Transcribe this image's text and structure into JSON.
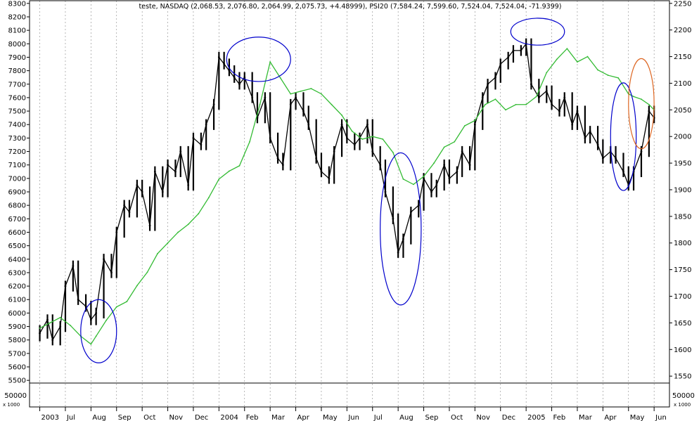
{
  "chart_data": {
    "type": "line",
    "title": "teste, NASDAQ (2,068.53, 2,076.80, 2,064.99, 2,075.73, +4.48999), PSI20 (7,584.24, 7,599.60, 7,524.04, 7,524.04, -71.9399)",
    "x_tick_labels": [
      "2003",
      "Jul",
      "Aug",
      "Sep",
      "Oct",
      "Nov",
      "Dec",
      "2004",
      "Feb",
      "Mar",
      "Apr",
      "May",
      "Jun",
      "Jul",
      "Aug",
      "Sep",
      "Oct",
      "Nov",
      "Dec",
      "2005",
      "Feb",
      "Mar",
      "Apr",
      "May",
      "Jun"
    ],
    "x_tick_months": [
      0,
      1,
      2,
      3,
      4,
      5,
      6,
      7,
      8,
      9,
      10,
      11,
      12,
      13,
      14,
      15,
      16,
      17,
      18,
      19,
      20,
      21,
      22,
      23,
      24
    ],
    "xlim": [
      -0.4,
      24.6
    ],
    "left_axis": {
      "ylim": [
        5480,
        8320
      ],
      "ticks": [
        5500,
        5600,
        5700,
        5800,
        5900,
        6000,
        6100,
        6200,
        6300,
        6400,
        6500,
        6600,
        6700,
        6800,
        6900,
        7000,
        7100,
        7200,
        7300,
        7400,
        7500,
        7600,
        7700,
        7800,
        7900,
        8000,
        8100,
        8200,
        8300
      ]
    },
    "right_axis": {
      "ylim": [
        1537,
        2255
      ],
      "ticks": [
        1550,
        1600,
        1650,
        1700,
        1750,
        1800,
        1850,
        1900,
        1950,
        2000,
        2050,
        2100,
        2150,
        2200,
        2250
      ]
    },
    "volume_panel": {
      "left_label": "50000",
      "right_label": "50000",
      "multiplier_label": "x 1000"
    },
    "series": [
      {
        "name": "PSI20",
        "axis": "left",
        "color": "#000000",
        "style": "bars",
        "x": [
          0,
          0.3,
          0.5,
          0.8,
          1.0,
          1.3,
          1.5,
          1.8,
          2.0,
          2.2,
          2.5,
          2.8,
          3.0,
          3.3,
          3.5,
          3.8,
          4.0,
          4.3,
          4.5,
          4.8,
          5.0,
          5.3,
          5.5,
          5.8,
          6.0,
          6.3,
          6.5,
          6.8,
          7.0,
          7.2,
          7.4,
          7.6,
          7.8,
          8.0,
          8.3,
          8.5,
          8.8,
          9.0,
          9.3,
          9.5,
          9.8,
          10.0,
          10.3,
          10.5,
          10.8,
          11.0,
          11.3,
          11.5,
          11.8,
          12.0,
          12.3,
          12.5,
          12.8,
          13.0,
          13.3,
          13.5,
          13.8,
          14.0,
          14.2,
          14.5,
          14.8,
          15.0,
          15.3,
          15.5,
          15.8,
          16.0,
          16.3,
          16.5,
          16.8,
          17.0,
          17.3,
          17.5,
          17.8,
          18.0,
          18.3,
          18.5,
          18.8,
          19.0,
          19.2,
          19.5,
          19.8,
          20.0,
          20.3,
          20.5,
          20.8,
          21.0,
          21.3,
          21.5,
          21.8,
          22.0,
          22.3,
          22.5,
          22.8,
          23.0,
          23.2,
          23.5,
          23.8,
          24.0
        ],
        "values": [
          5850,
          5950,
          5800,
          5900,
          6200,
          6350,
          6100,
          6050,
          5950,
          6000,
          6400,
          6300,
          6600,
          6800,
          6750,
          6950,
          6900,
          6650,
          7050,
          6900,
          7100,
          7050,
          7200,
          6950,
          7300,
          7250,
          7400,
          7550,
          7900,
          7850,
          7800,
          7750,
          7700,
          7750,
          7600,
          7450,
          7600,
          7300,
          7150,
          7100,
          7550,
          7600,
          7500,
          7400,
          7150,
          7050,
          7000,
          7200,
          7400,
          7300,
          7250,
          7300,
          7400,
          7200,
          7100,
          6900,
          6700,
          6450,
          6550,
          6750,
          6800,
          7000,
          6900,
          6950,
          7100,
          7000,
          7050,
          7200,
          7100,
          7400,
          7600,
          7700,
          7750,
          7850,
          7900,
          7950,
          7950,
          8000,
          7700,
          7600,
          7650,
          7550,
          7500,
          7600,
          7400,
          7500,
          7300,
          7350,
          7250,
          7150,
          7200,
          7150,
          7050,
          6950,
          7050,
          7200,
          7500,
          7450
        ]
      },
      {
        "name": "NASDAQ",
        "axis": "right",
        "color": "#33bb33",
        "style": "line",
        "x": [
          0,
          0.4,
          0.8,
          1.2,
          1.6,
          2.0,
          2.2,
          2.6,
          3.0,
          3.4,
          3.8,
          4.2,
          4.6,
          5.0,
          5.4,
          5.8,
          6.2,
          6.6,
          7.0,
          7.4,
          7.8,
          8.2,
          8.6,
          9.0,
          9.4,
          9.8,
          10.2,
          10.6,
          11.0,
          11.4,
          11.8,
          12.2,
          12.6,
          13.0,
          13.4,
          13.8,
          14.2,
          14.6,
          15.0,
          15.4,
          15.8,
          16.2,
          16.6,
          17.0,
          17.4,
          17.8,
          18.2,
          18.6,
          19.0,
          19.4,
          19.8,
          20.2,
          20.6,
          21.0,
          21.4,
          21.8,
          22.2,
          22.6,
          23.0,
          23.2,
          23.5,
          23.8,
          24.0
        ],
        "values": [
          1640,
          1650,
          1660,
          1645,
          1625,
          1610,
          1625,
          1655,
          1680,
          1690,
          1720,
          1745,
          1780,
          1800,
          1820,
          1835,
          1855,
          1885,
          1920,
          1935,
          1945,
          1990,
          2060,
          2140,
          2110,
          2080,
          2085,
          2090,
          2080,
          2060,
          2040,
          2010,
          1995,
          2000,
          1995,
          1970,
          1920,
          1910,
          1925,
          1950,
          1980,
          1990,
          2020,
          2030,
          2060,
          2070,
          2050,
          2060,
          2060,
          2075,
          2120,
          2145,
          2165,
          2140,
          2150,
          2125,
          2115,
          2110,
          2080,
          2075,
          2070,
          2060,
          2050
        ]
      }
    ],
    "annotations": [
      {
        "shape": "ellipse",
        "color": "#0000cc",
        "x_range": [
          1.6,
          3.0
        ],
        "y_range": [
          5630,
          6100
        ]
      },
      {
        "shape": "ellipse",
        "color": "#0000cc",
        "x_range": [
          7.3,
          9.8
        ],
        "y_range": [
          7720,
          8050
        ]
      },
      {
        "shape": "ellipse",
        "color": "#0000cc",
        "x_range": [
          13.3,
          14.9
        ],
        "y_range": [
          6060,
          7190
        ]
      },
      {
        "shape": "ellipse",
        "color": "#0000cc",
        "x_range": [
          18.4,
          20.5
        ],
        "y_range": [
          7990,
          8190
        ]
      },
      {
        "shape": "ellipse",
        "color": "#0000cc",
        "x_range": [
          22.3,
          23.3
        ],
        "y_range": [
          6910,
          7710
        ]
      },
      {
        "shape": "ellipse",
        "color": "#dd6622",
        "x_range": [
          23.0,
          24.0
        ],
        "y_range": [
          7220,
          7890
        ]
      }
    ],
    "grid": "vertical-dashed",
    "legend": "none"
  }
}
